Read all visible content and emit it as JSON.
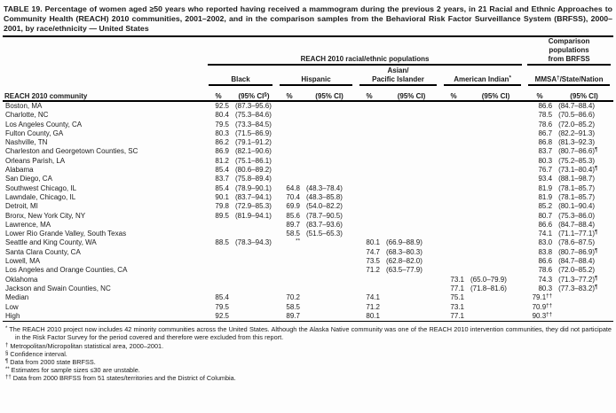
{
  "title": "TABLE 19. Percentage of women aged ≥50 years who reported having received a mammogram during the previous 2 years, in 21 Racial and Ethnic Approaches to Community Health (REACH) 2010 communities, 2001–2002, and in the comparison samples from the Behavioral Risk Factor Surveillance System (BRFSS), 2000–2001, by race/ethnicity — United States",
  "table": {
    "spanners": {
      "reach": "REACH 2010 racial/ethnic populations",
      "comparison": "Comparison\npopulations\nfrom BRFSS"
    },
    "stub_head": "REACH 2010 community",
    "groups": [
      {
        "pre": "Black",
        "sup": "",
        "post": "",
        "pct": "%",
        "ci_pre": "(95% CI",
        "ci_sup": "§",
        "ci_post": ")"
      },
      {
        "pre": "Hispanic",
        "sup": "",
        "post": "",
        "pct": "%",
        "ci_pre": "(95% CI",
        "ci_sup": "",
        "ci_post": ")"
      },
      {
        "pre": "Asian/\nPacific Islander",
        "sup": "",
        "post": "",
        "pct": "%",
        "ci_pre": "(95% CI",
        "ci_sup": "",
        "ci_post": ")"
      },
      {
        "pre": "American Indian",
        "sup": "*",
        "post": "",
        "pct": "%",
        "ci_pre": "(95% CI",
        "ci_sup": "",
        "ci_post": ")"
      },
      {
        "pre": "MMSA",
        "sup": "†",
        "post": "/State/Nation",
        "pct": "%",
        "ci_pre": "(95% CI",
        "ci_sup": "",
        "ci_post": ")"
      }
    ],
    "rows": [
      {
        "community": "Boston, MA",
        "b_pct": "92.5",
        "b_ci": "(87.3–95.6)",
        "h_pct": "",
        "h_ci": "",
        "a_pct": "",
        "a_ci": "",
        "i_pct": "",
        "i_ci": "",
        "m_pct": "86.6",
        "m_ci": "(84.7–88.4)"
      },
      {
        "community": "Charlotte, NC",
        "b_pct": "80.4",
        "b_ci": "(75.3–84.6)",
        "h_pct": "",
        "h_ci": "",
        "a_pct": "",
        "a_ci": "",
        "i_pct": "",
        "i_ci": "",
        "m_pct": "78.5",
        "m_ci": "(70.5–86.6)"
      },
      {
        "community": "Los Angeles County, CA",
        "b_pct": "79.5",
        "b_ci": "(73.3–84.5)",
        "h_pct": "",
        "h_ci": "",
        "a_pct": "",
        "a_ci": "",
        "i_pct": "",
        "i_ci": "",
        "m_pct": "78.6",
        "m_ci": "(72.0–85.2)"
      },
      {
        "community": "Fulton County, GA",
        "b_pct": "80.3",
        "b_ci": "(71.5–86.9)",
        "h_pct": "",
        "h_ci": "",
        "a_pct": "",
        "a_ci": "",
        "i_pct": "",
        "i_ci": "",
        "m_pct": "86.7",
        "m_ci": "(82.2–91.3)"
      },
      {
        "community": "Nashville, TN",
        "b_pct": "86.2",
        "b_ci": "(79.1–91.2)",
        "h_pct": "",
        "h_ci": "",
        "a_pct": "",
        "a_ci": "",
        "i_pct": "",
        "i_ci": "",
        "m_pct": "86.8",
        "m_ci": "(81.3–92.3)"
      },
      {
        "community": "Charleston and Georgetown Counties, SC",
        "b_pct": "86.9",
        "b_ci": "(82.1–90.6)",
        "h_pct": "",
        "h_ci": "",
        "a_pct": "",
        "a_ci": "",
        "i_pct": "",
        "i_ci": "",
        "m_pct": "83.7",
        "m_ci": "(80.7–86.6)¶"
      },
      {
        "community": "Orleans Parish, LA",
        "b_pct": "81.2",
        "b_ci": "(75.1–86.1)",
        "h_pct": "",
        "h_ci": "",
        "a_pct": "",
        "a_ci": "",
        "i_pct": "",
        "i_ci": "",
        "m_pct": "80.3",
        "m_ci": "(75.2–85.3)"
      },
      {
        "community": "Alabama",
        "b_pct": "85.4",
        "b_ci": "(80.6–89.2)",
        "h_pct": "",
        "h_ci": "",
        "a_pct": "",
        "a_ci": "",
        "i_pct": "",
        "i_ci": "",
        "m_pct": "76.7",
        "m_ci": "(73.1–80.4)¶"
      },
      {
        "community": "San Diego, CA",
        "b_pct": "83.7",
        "b_ci": "(75.8–89.4)",
        "h_pct": "",
        "h_ci": "",
        "a_pct": "",
        "a_ci": "",
        "i_pct": "",
        "i_ci": "",
        "m_pct": "93.4",
        "m_ci": "(88.1–98.7)"
      },
      {
        "community": "Southwest Chicago, IL",
        "b_pct": "85.4",
        "b_ci": "(78.9–90.1)",
        "h_pct": "64.8",
        "h_ci": "(48.3–78.4)",
        "a_pct": "",
        "a_ci": "",
        "i_pct": "",
        "i_ci": "",
        "m_pct": "81.9",
        "m_ci": "(78.1–85.7)"
      },
      {
        "community": "Lawndale, Chicago, IL",
        "b_pct": "90.1",
        "b_ci": "(83.7–94.1)",
        "h_pct": "70.4",
        "h_ci": "(48.3–85.8)",
        "a_pct": "",
        "a_ci": "",
        "i_pct": "",
        "i_ci": "",
        "m_pct": "81.9",
        "m_ci": "(78.1–85.7)"
      },
      {
        "community": "Detroit, MI",
        "b_pct": "79.8",
        "b_ci": "(72.9–85.3)",
        "h_pct": "69.9",
        "h_ci": "(54.0–82.2)",
        "a_pct": "",
        "a_ci": "",
        "i_pct": "",
        "i_ci": "",
        "m_pct": "85.2",
        "m_ci": "(80.1–90.4)"
      },
      {
        "community": "Bronx, New York City, NY",
        "b_pct": "89.5",
        "b_ci": "(81.9–94.1)",
        "h_pct": "85.6",
        "h_ci": "(78.7–90.5)",
        "a_pct": "",
        "a_ci": "",
        "i_pct": "",
        "i_ci": "",
        "m_pct": "80.7",
        "m_ci": "(75.3–86.0)"
      },
      {
        "community": "Lawrence, MA",
        "b_pct": "",
        "b_ci": "",
        "h_pct": "89.7",
        "h_ci": "(83.7–93.6)",
        "a_pct": "",
        "a_ci": "",
        "i_pct": "",
        "i_ci": "",
        "m_pct": "86.6",
        "m_ci": "(84.7–88.4)"
      },
      {
        "community": "Lower Rio Grande Valley, South Texas",
        "b_pct": "",
        "b_ci": "",
        "h_pct": "58.5",
        "h_ci": "(51.5–65.3)",
        "a_pct": "",
        "a_ci": "",
        "i_pct": "",
        "i_ci": "",
        "m_pct": "74.1",
        "m_ci": "(71.1–77.1)¶"
      },
      {
        "community": "Seattle and King County, WA",
        "b_pct": "88.5",
        "b_ci": "(78.3–94.3)",
        "h_pct": "**",
        "h_ci": "",
        "a_pct": "80.1",
        "a_ci": "(66.9–88.9)",
        "i_pct": "",
        "i_ci": "",
        "m_pct": "83.0",
        "m_ci": "(78.6–87.5)"
      },
      {
        "community": "Santa Clara County, CA",
        "b_pct": "",
        "b_ci": "",
        "h_pct": "",
        "h_ci": "",
        "a_pct": "74.7",
        "a_ci": "(68.3–80.3)",
        "i_pct": "",
        "i_ci": "",
        "m_pct": "83.8",
        "m_ci": "(80.7–86.9)¶"
      },
      {
        "community": "Lowell, MA",
        "b_pct": "",
        "b_ci": "",
        "h_pct": "",
        "h_ci": "",
        "a_pct": "73.5",
        "a_ci": "(62.8–82.0)",
        "i_pct": "",
        "i_ci": "",
        "m_pct": "86.6",
        "m_ci": "(84.7–88.4)"
      },
      {
        "community": "Los Angeles and Orange Counties, CA",
        "b_pct": "",
        "b_ci": "",
        "h_pct": "",
        "h_ci": "",
        "a_pct": "71.2",
        "a_ci": "(63.5–77.9)",
        "i_pct": "",
        "i_ci": "",
        "m_pct": "78.6",
        "m_ci": "(72.0–85.2)"
      },
      {
        "community": "Oklahoma",
        "b_pct": "",
        "b_ci": "",
        "h_pct": "",
        "h_ci": "",
        "a_pct": "",
        "a_ci": "",
        "i_pct": "73.1",
        "i_ci": "(65.0–79.9)",
        "m_pct": "74.3",
        "m_ci": "(71.3–77.2)¶"
      },
      {
        "community": "Jackson and Swain Counties, NC",
        "b_pct": "",
        "b_ci": "",
        "h_pct": "",
        "h_ci": "",
        "a_pct": "",
        "a_ci": "",
        "i_pct": "77.1",
        "i_ci": "(71.8–81.6)",
        "m_pct": "80.3",
        "m_ci": "(77.3–83.2)¶"
      },
      {
        "community": "Median",
        "b_pct": "85.4",
        "b_ci": "",
        "h_pct": "70.2",
        "h_ci": "",
        "a_pct": "74.1",
        "a_ci": "",
        "i_pct": "75.1",
        "i_ci": "",
        "m_pct": "79.1††",
        "m_ci": ""
      },
      {
        "community": "Low",
        "b_pct": "79.5",
        "b_ci": "",
        "h_pct": "58.5",
        "h_ci": "",
        "a_pct": "71.2",
        "a_ci": "",
        "i_pct": "73.1",
        "i_ci": "",
        "m_pct": "70.9††",
        "m_ci": ""
      },
      {
        "community": "High",
        "b_pct": "92.5",
        "b_ci": "",
        "h_pct": "89.7",
        "h_ci": "",
        "a_pct": "80.1",
        "a_ci": "",
        "i_pct": "77.1",
        "i_ci": "",
        "m_pct": "90.3††",
        "m_ci": ""
      }
    ]
  },
  "footnotes": [
    {
      "sym": "*",
      "text": "The REACH 2010 project now includes 42 minority communities across the United States. Although the Alaska Native community was one of the REACH 2010 intervention communities, they did not participate in the Risk Factor Survey for the period covered and therefore were excluded from this report."
    },
    {
      "sym": "†",
      "text": "Metropolitan/Micropolitan statistical area, 2000–2001."
    },
    {
      "sym": "§",
      "text": "Confidence interval."
    },
    {
      "sym": "¶",
      "text": "Data from 2000 state BRFSS."
    },
    {
      "sym": "**",
      "text": "Estimates for sample sizes ≤30 are unstable."
    },
    {
      "sym": "††",
      "text": "Data from 2000 BRFSS from 51 states/territories and the District of Columbia."
    }
  ]
}
